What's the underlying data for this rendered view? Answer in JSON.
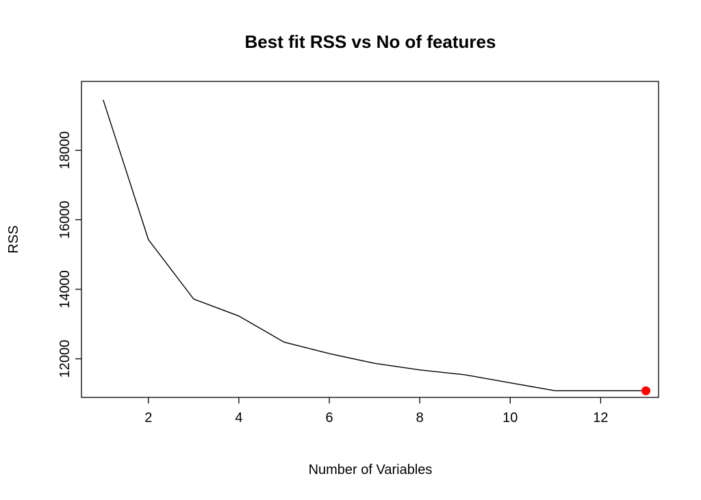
{
  "chart_data": {
    "type": "line",
    "title": "Best fit RSS vs No of features",
    "xlabel": "Number of Variables",
    "ylabel": "RSS",
    "x": [
      1,
      2,
      3,
      4,
      5,
      6,
      7,
      8,
      9,
      10,
      11,
      12,
      13
    ],
    "series": [
      {
        "values": [
          19450,
          15430,
          13720,
          13230,
          12480,
          12150,
          11870,
          11680,
          11540,
          11310,
          11080,
          11080,
          11080
        ]
      }
    ],
    "highlight": {
      "x": 13,
      "y": 11080,
      "color": "#ff0000"
    },
    "xlim": [
      0.52,
      13.28
    ],
    "ylim": [
      10890,
      19980
    ],
    "xticks": [
      2,
      4,
      6,
      8,
      10,
      12
    ],
    "yticks": [
      12000,
      14000,
      16000,
      18000
    ],
    "grid": false,
    "line_color": "#000000"
  }
}
